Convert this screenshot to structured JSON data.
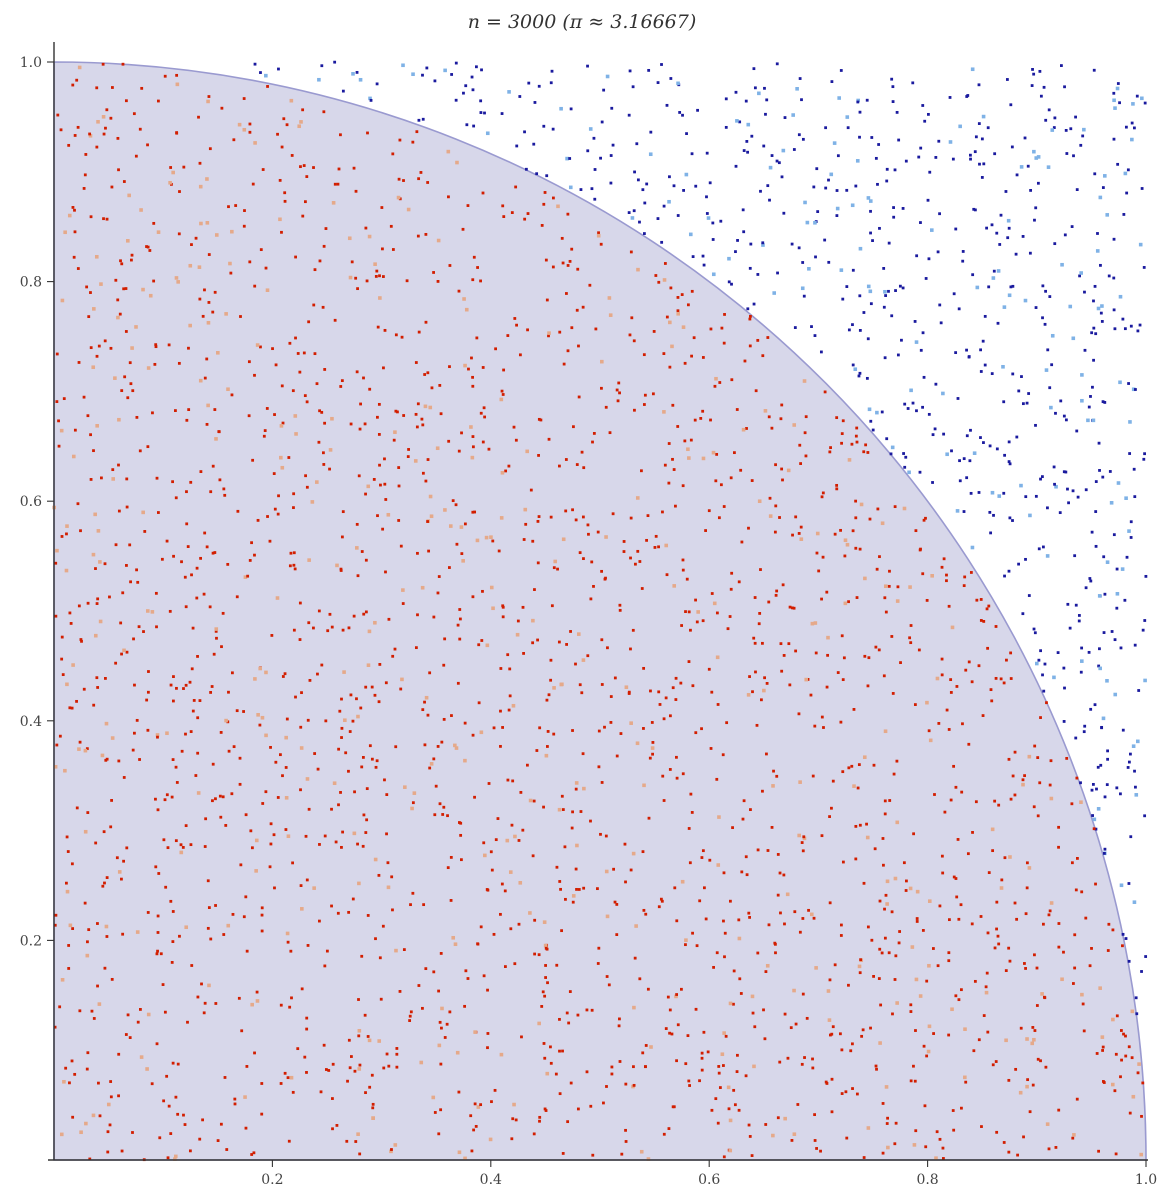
{
  "chart_data": {
    "type": "scatter",
    "title": "n = 3000 (π ≈ 3.16667)",
    "xlabel": "",
    "ylabel": "",
    "xlim": [
      0,
      1
    ],
    "ylim": [
      0,
      1
    ],
    "grid": false,
    "x_ticks": [
      "0.2",
      "0.4",
      "0.6",
      "0.8",
      "1.0"
    ],
    "y_ticks": [
      "0.2",
      "0.4",
      "0.6",
      "0.8",
      "1.0"
    ],
    "sample_count": 3000,
    "pi_estimate": 3.16667,
    "region": {
      "shape": "quarter-circle",
      "radius": 1,
      "fill_color": "#d7d7ea",
      "edge_color": "#9a9ad0"
    },
    "series": [
      {
        "color": "#d21e00",
        "marker": "small-square"
      },
      {
        "color": "#e5a98a",
        "marker": "small-square"
      },
      {
        "color": "#1a1a9e",
        "marker": "small-square"
      },
      {
        "color": "#7fb2e6",
        "marker": "small-square"
      }
    ],
    "inside_ratio": 0.7917
  }
}
